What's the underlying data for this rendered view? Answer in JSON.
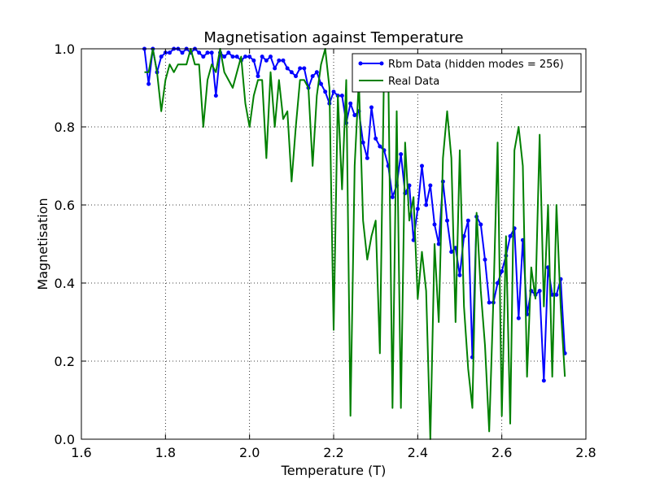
{
  "chart_data": {
    "type": "line",
    "title": "Magnetisation against Temperature",
    "xlabel": "Temperature (T)",
    "ylabel": "Magnetisation",
    "xlim": [
      1.6,
      2.8
    ],
    "ylim": [
      0.0,
      1.0
    ],
    "x_ticks": [
      1.6,
      1.8,
      2.0,
      2.2,
      2.4,
      2.6,
      2.8
    ],
    "y_ticks": [
      0.0,
      0.2,
      0.4,
      0.6,
      0.8,
      1.0
    ],
    "x_tick_labels": [
      "1.6",
      "1.8",
      "2.0",
      "2.2",
      "2.4",
      "2.6",
      "2.8"
    ],
    "y_tick_labels": [
      "0.0",
      "0.2",
      "0.4",
      "0.6",
      "0.8",
      "1.0"
    ],
    "grid": true,
    "legend_position": "top-right",
    "series": [
      {
        "name": "Rbm Data (hidden modes = 256)",
        "color": "#0000ff",
        "marker": "dot",
        "x": [
          1.75,
          1.76,
          1.77,
          1.78,
          1.79,
          1.8,
          1.81,
          1.82,
          1.83,
          1.84,
          1.85,
          1.86,
          1.87,
          1.88,
          1.89,
          1.9,
          1.91,
          1.92,
          1.93,
          1.94,
          1.95,
          1.96,
          1.97,
          1.98,
          1.99,
          2.0,
          2.01,
          2.02,
          2.03,
          2.04,
          2.05,
          2.06,
          2.07,
          2.08,
          2.09,
          2.1,
          2.11,
          2.12,
          2.13,
          2.14,
          2.15,
          2.16,
          2.17,
          2.18,
          2.19,
          2.2,
          2.21,
          2.22,
          2.23,
          2.24,
          2.25,
          2.26,
          2.27,
          2.28,
          2.29,
          2.3,
          2.31,
          2.32,
          2.33,
          2.34,
          2.35,
          2.36,
          2.37,
          2.38,
          2.39,
          2.4,
          2.41,
          2.42,
          2.43,
          2.44,
          2.45,
          2.46,
          2.47,
          2.48,
          2.49,
          2.5,
          2.51,
          2.52,
          2.53,
          2.54,
          2.55,
          2.56,
          2.57,
          2.58,
          2.59,
          2.6,
          2.61,
          2.62,
          2.63,
          2.64,
          2.65,
          2.66,
          2.67,
          2.68,
          2.69,
          2.7,
          2.71,
          2.72,
          2.73,
          2.74,
          2.75
        ],
        "y": [
          1.0,
          0.91,
          1.0,
          0.94,
          0.98,
          0.99,
          0.99,
          1.0,
          1.0,
          0.99,
          1.0,
          0.99,
          1.0,
          0.99,
          0.98,
          0.99,
          0.99,
          0.88,
          0.99,
          0.98,
          0.99,
          0.98,
          0.98,
          0.97,
          0.98,
          0.98,
          0.97,
          0.93,
          0.98,
          0.97,
          0.98,
          0.95,
          0.97,
          0.97,
          0.95,
          0.94,
          0.93,
          0.95,
          0.95,
          0.9,
          0.93,
          0.94,
          0.91,
          0.89,
          0.86,
          0.89,
          0.88,
          0.88,
          0.81,
          0.86,
          0.83,
          0.84,
          0.76,
          0.72,
          0.85,
          0.77,
          0.75,
          0.74,
          0.7,
          0.62,
          0.65,
          0.73,
          0.63,
          0.65,
          0.51,
          0.59,
          0.7,
          0.6,
          0.65,
          0.55,
          0.5,
          0.66,
          0.56,
          0.48,
          0.49,
          0.42,
          0.52,
          0.56,
          0.21,
          0.57,
          0.55,
          0.46,
          0.35,
          0.35,
          0.4,
          0.43,
          0.47,
          0.52,
          0.54,
          0.31,
          0.51,
          0.32,
          0.38,
          0.37,
          0.38,
          0.15,
          0.44,
          0.37,
          0.37,
          0.41,
          0.22
        ]
      },
      {
        "name": "Real Data",
        "color": "#008000",
        "marker": "none",
        "x": [
          1.75,
          1.76,
          1.77,
          1.78,
          1.79,
          1.8,
          1.81,
          1.82,
          1.83,
          1.84,
          1.85,
          1.86,
          1.87,
          1.88,
          1.89,
          1.9,
          1.91,
          1.92,
          1.93,
          1.94,
          1.95,
          1.96,
          1.97,
          1.98,
          1.99,
          2.0,
          2.01,
          2.02,
          2.03,
          2.04,
          2.05,
          2.06,
          2.07,
          2.08,
          2.09,
          2.1,
          2.11,
          2.12,
          2.13,
          2.14,
          2.15,
          2.16,
          2.17,
          2.18,
          2.19,
          2.2,
          2.21,
          2.22,
          2.23,
          2.24,
          2.25,
          2.26,
          2.27,
          2.28,
          2.29,
          2.3,
          2.31,
          2.32,
          2.33,
          2.34,
          2.35,
          2.36,
          2.37,
          2.38,
          2.39,
          2.4,
          2.41,
          2.42,
          2.43,
          2.44,
          2.45,
          2.46,
          2.47,
          2.48,
          2.49,
          2.5,
          2.51,
          2.52,
          2.53,
          2.54,
          2.55,
          2.56,
          2.57,
          2.58,
          2.59,
          2.6,
          2.61,
          2.62,
          2.63,
          2.64,
          2.65,
          2.66,
          2.67,
          2.68,
          2.69,
          2.7,
          2.71,
          2.72,
          2.73,
          2.74,
          2.75
        ],
        "y": [
          0.94,
          0.94,
          1.0,
          0.94,
          0.84,
          0.92,
          0.96,
          0.94,
          0.96,
          0.96,
          0.96,
          1.0,
          0.96,
          0.96,
          0.8,
          0.92,
          0.96,
          0.94,
          1.0,
          0.94,
          0.92,
          0.9,
          0.94,
          0.98,
          0.86,
          0.8,
          0.88,
          0.92,
          0.92,
          0.72,
          0.94,
          0.8,
          0.92,
          0.82,
          0.84,
          0.66,
          0.8,
          0.92,
          0.92,
          0.9,
          0.7,
          0.88,
          0.96,
          1.0,
          0.9,
          0.28,
          0.88,
          0.64,
          0.92,
          0.06,
          0.7,
          0.92,
          0.56,
          0.46,
          0.52,
          0.56,
          0.22,
          0.96,
          0.94,
          0.08,
          0.84,
          0.08,
          0.76,
          0.56,
          0.62,
          0.36,
          0.48,
          0.38,
          0.0,
          0.5,
          0.3,
          0.72,
          0.84,
          0.72,
          0.3,
          0.74,
          0.34,
          0.18,
          0.08,
          0.58,
          0.38,
          0.24,
          0.02,
          0.36,
          0.76,
          0.06,
          0.52,
          0.04,
          0.74,
          0.8,
          0.7,
          0.16,
          0.44,
          0.36,
          0.78,
          0.34,
          0.6,
          0.16,
          0.6,
          0.34,
          0.16
        ]
      }
    ]
  }
}
